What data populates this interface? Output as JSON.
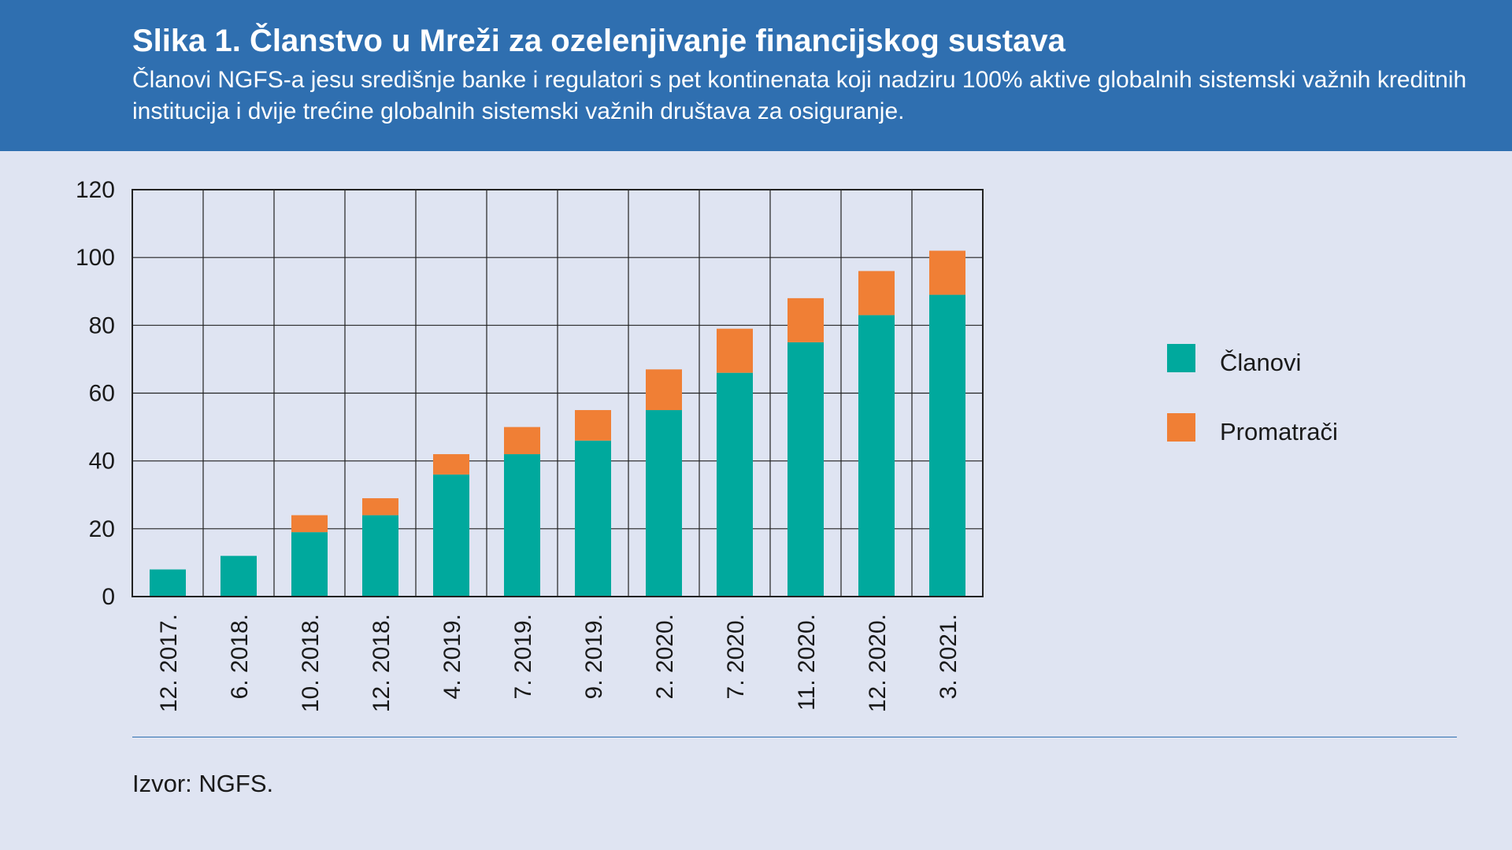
{
  "header": {
    "title": "Slika 1. Članstvo u Mreži za ozelenjivanje financijskog sustava",
    "subtitle": "Članovi NGFS-a jesu središnje banke i regulatori s pet kontinenata koji nadziru 100% aktive globalnih sistemski važnih kreditnih institucija i dvije trećine globalnih sistemski važnih društava za osiguranje."
  },
  "source": "Izvor: NGFS.",
  "colors": {
    "members": "#00a99d",
    "observers": "#f07f35",
    "grid": "#222222"
  },
  "chart_data": {
    "type": "bar",
    "stacked": true,
    "categories": [
      "12. 2017.",
      "6. 2018.",
      "10. 2018.",
      "12. 2018.",
      "4. 2019.",
      "7. 2019.",
      "9. 2019.",
      "2. 2020.",
      "7. 2020.",
      "11. 2020.",
      "12. 2020.",
      "3. 2021."
    ],
    "series": [
      {
        "name": "Članovi",
        "color": "#00a99d",
        "values": [
          8,
          12,
          19,
          24,
          36,
          42,
          46,
          55,
          66,
          75,
          83,
          89
        ]
      },
      {
        "name": "Promatrači",
        "color": "#f07f35",
        "values": [
          0,
          0,
          5,
          5,
          6,
          8,
          9,
          12,
          13,
          13,
          13,
          13
        ]
      }
    ],
    "ylim": [
      0,
      120
    ],
    "yticks": [
      0,
      20,
      40,
      60,
      80,
      100,
      120
    ],
    "xlabel": "",
    "ylabel": "",
    "grid": true,
    "legend": "right"
  }
}
